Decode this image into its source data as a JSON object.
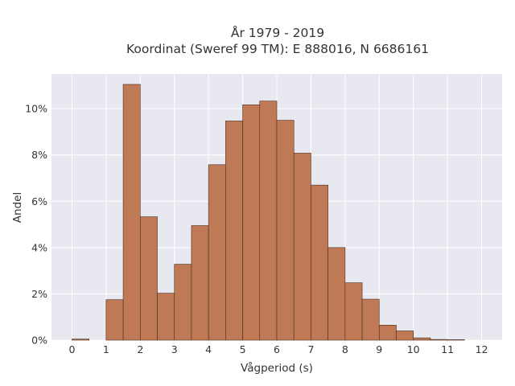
{
  "chart_data": {
    "type": "bar",
    "title_lines": [
      "År 1979 - 2019",
      "Koordinat (Sweref 99 TM): E 888016, N 6686161"
    ],
    "xlabel": "Vågperiod (s)",
    "ylabel": "Andel",
    "xlim": [
      -0.6,
      12.6
    ],
    "ylim": [
      0,
      0.115
    ],
    "x_ticks": [
      0,
      1,
      2,
      3,
      4,
      5,
      6,
      7,
      8,
      9,
      10,
      11,
      12
    ],
    "y_ticks": [
      0,
      0.02,
      0.04,
      0.06,
      0.08,
      0.1
    ],
    "y_tick_labels": [
      "0%",
      "2%",
      "4%",
      "6%",
      "8%",
      "10%"
    ],
    "bin_width": 0.5,
    "bins": [
      {
        "start": 0.0,
        "value": 0.0005
      },
      {
        "start": 1.0,
        "value": 0.0175
      },
      {
        "start": 1.5,
        "value": 0.1105
      },
      {
        "start": 2.0,
        "value": 0.0533
      },
      {
        "start": 2.5,
        "value": 0.0203
      },
      {
        "start": 3.0,
        "value": 0.0328
      },
      {
        "start": 3.5,
        "value": 0.0495
      },
      {
        "start": 4.0,
        "value": 0.0758
      },
      {
        "start": 4.5,
        "value": 0.0947
      },
      {
        "start": 5.0,
        "value": 0.1017
      },
      {
        "start": 5.5,
        "value": 0.1033
      },
      {
        "start": 6.0,
        "value": 0.095
      },
      {
        "start": 6.5,
        "value": 0.0808
      },
      {
        "start": 7.0,
        "value": 0.067
      },
      {
        "start": 7.5,
        "value": 0.04
      },
      {
        "start": 8.0,
        "value": 0.0248
      },
      {
        "start": 8.5,
        "value": 0.0177
      },
      {
        "start": 9.0,
        "value": 0.0065
      },
      {
        "start": 9.5,
        "value": 0.004
      },
      {
        "start": 10.0,
        "value": 0.001
      },
      {
        "start": 10.5,
        "value": 0.0003
      },
      {
        "start": 11.0,
        "value": 0.0002
      }
    ],
    "grid": true,
    "colors": {
      "bar_fill": "#bf7a55",
      "bar_edge": "#4a2e1e",
      "plot_bg": "#e8e8f0",
      "grid": "#ffffff"
    }
  }
}
